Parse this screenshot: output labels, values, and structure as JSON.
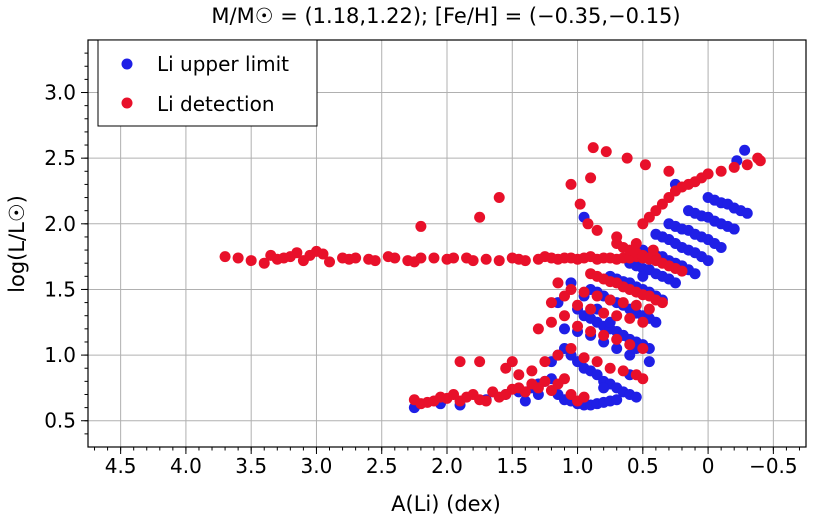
{
  "chart_data": {
    "type": "scatter",
    "title": "M/M☉ = (1.18,1.22); [Fe/H] = (−0.35,−0.15)",
    "xlabel": "A(Li) (dex)",
    "ylabel": "log(L/L☉)",
    "xlim": [
      4.75,
      -0.75
    ],
    "ylim": [
      0.3,
      3.4
    ],
    "x_inverted": true,
    "xticks": [
      4.5,
      4.0,
      3.5,
      3.0,
      2.5,
      2.0,
      1.5,
      1.0,
      0.5,
      0.0,
      -0.5
    ],
    "xtick_labels": [
      "4.5",
      "4.0",
      "3.5",
      "3.0",
      "2.5",
      "2.0",
      "1.5",
      "1.0",
      "0.5",
      "0",
      "−0.5"
    ],
    "yticks": [
      0.5,
      1.0,
      1.5,
      2.0,
      2.5,
      3.0
    ],
    "ytick_labels": [
      "0.5",
      "1.0",
      "1.5",
      "2.0",
      "2.5",
      "3.0"
    ],
    "grid": true,
    "legend_position": "top-left",
    "series": [
      {
        "name": "Li upper limit",
        "color": "#1f1fe6",
        "x": [
          2.25,
          2.05,
          1.9,
          1.7,
          1.55,
          1.45,
          1.35,
          1.3,
          1.25,
          1.2,
          1.15,
          1.1,
          1.05,
          1.0,
          0.95,
          0.9,
          0.85,
          0.8,
          0.75,
          0.7,
          1.2,
          1.15,
          1.1,
          1.05,
          1.0,
          0.95,
          0.9,
          0.85,
          0.8,
          0.75,
          0.7,
          0.65,
          0.6,
          0.55,
          1.1,
          1.0,
          0.9,
          0.8,
          0.7,
          0.6,
          1.0,
          0.95,
          0.9,
          0.85,
          0.8,
          0.75,
          0.7,
          0.65,
          0.6,
          0.55,
          0.5,
          0.45,
          0.9,
          0.85,
          0.8,
          0.75,
          0.7,
          0.65,
          0.6,
          0.55,
          0.5,
          0.45,
          0.4,
          0.75,
          0.7,
          0.65,
          0.6,
          0.55,
          0.5,
          0.45,
          0.4,
          0.35,
          0.6,
          0.55,
          0.5,
          0.45,
          0.4,
          0.35,
          0.3,
          0.25,
          0.5,
          0.45,
          0.4,
          0.35,
          0.3,
          0.25,
          0.2,
          0.15,
          0.1,
          0.4,
          0.35,
          0.3,
          0.25,
          0.2,
          0.15,
          0.1,
          0.05,
          0.0,
          0.3,
          0.25,
          0.2,
          0.15,
          0.1,
          0.05,
          0.0,
          -0.05,
          -0.1,
          0.15,
          0.1,
          0.05,
          0.0,
          -0.05,
          -0.1,
          -0.15,
          -0.2,
          0.0,
          -0.05,
          -0.1,
          -0.15,
          -0.2,
          -0.25,
          -0.3,
          1.05,
          0.95,
          0.85,
          0.75,
          0.65,
          0.55,
          0.45,
          1.15,
          0.8,
          0.6,
          0.5,
          0.35,
          0.25,
          -0.28,
          -0.22,
          0.95,
          1.3,
          1.4
        ],
        "y": [
          0.6,
          0.63,
          0.62,
          0.66,
          0.7,
          0.72,
          0.75,
          0.78,
          0.8,
          0.82,
          0.7,
          0.66,
          0.65,
          0.63,
          0.62,
          0.62,
          0.63,
          0.64,
          0.65,
          0.66,
          0.95,
          1.0,
          1.05,
          1.0,
          0.95,
          0.9,
          0.88,
          0.85,
          0.8,
          0.78,
          0.75,
          0.72,
          0.7,
          0.68,
          1.2,
          1.18,
          1.15,
          1.1,
          1.05,
          1.0,
          1.35,
          1.3,
          1.28,
          1.25,
          1.22,
          1.2,
          1.18,
          1.15,
          1.12,
          1.1,
          1.08,
          1.05,
          1.5,
          1.48,
          1.45,
          1.42,
          1.4,
          1.38,
          1.35,
          1.32,
          1.3,
          1.28,
          1.25,
          1.6,
          1.58,
          1.56,
          1.55,
          1.52,
          1.5,
          1.48,
          1.45,
          1.42,
          1.7,
          1.68,
          1.66,
          1.65,
          1.62,
          1.6,
          1.58,
          1.55,
          1.8,
          1.78,
          1.76,
          1.75,
          1.72,
          1.7,
          1.68,
          1.65,
          1.62,
          1.92,
          1.9,
          1.88,
          1.85,
          1.82,
          1.8,
          1.78,
          1.75,
          1.72,
          2.0,
          1.98,
          1.96,
          1.95,
          1.92,
          1.9,
          1.88,
          1.85,
          1.82,
          2.1,
          2.08,
          2.06,
          2.05,
          2.02,
          2.0,
          1.98,
          1.96,
          2.2,
          2.18,
          2.16,
          2.15,
          2.12,
          2.1,
          2.08,
          1.55,
          1.45,
          1.35,
          1.25,
          1.15,
          1.05,
          0.95,
          1.4,
          0.75,
          0.85,
          1.6,
          1.9,
          2.3,
          2.56,
          2.48,
          2.05,
          0.7,
          0.65
        ]
      },
      {
        "name": "Li detection",
        "color": "#e8102a",
        "x": [
          3.7,
          3.6,
          3.5,
          3.4,
          3.35,
          3.3,
          3.25,
          3.2,
          3.15,
          3.1,
          3.05,
          3.0,
          2.95,
          2.9,
          2.8,
          2.75,
          2.7,
          2.6,
          2.55,
          2.45,
          2.4,
          2.3,
          2.25,
          2.2,
          2.1,
          2.0,
          1.95,
          1.85,
          1.8,
          1.7,
          1.6,
          1.5,
          1.45,
          1.4,
          1.3,
          1.25,
          1.2,
          1.15,
          1.1,
          1.05,
          1.0,
          0.95,
          0.9,
          0.85,
          0.8,
          0.75,
          0.7,
          0.65,
          0.6,
          0.55,
          0.5,
          0.45,
          0.4,
          2.2,
          2.25,
          2.15,
          2.1,
          2.05,
          2.0,
          1.95,
          1.9,
          1.85,
          1.8,
          1.75,
          1.7,
          1.65,
          1.6,
          1.55,
          1.5,
          1.45,
          1.4,
          1.35,
          1.3,
          1.25,
          1.2,
          1.15,
          1.1,
          1.05,
          1.0,
          0.95,
          1.9,
          1.75,
          1.55,
          1.45,
          1.35,
          1.25,
          1.15,
          1.05,
          0.95,
          0.85,
          0.75,
          0.65,
          0.55,
          0.5,
          1.3,
          1.2,
          1.1,
          1.0,
          0.9,
          0.8,
          0.7,
          0.6,
          0.5,
          1.2,
          1.1,
          1.0,
          0.9,
          0.8,
          0.7,
          0.6,
          0.5,
          1.15,
          1.05,
          0.95,
          0.85,
          0.75,
          0.65,
          0.55,
          0.45,
          0.9,
          0.85,
          0.8,
          0.75,
          0.7,
          0.65,
          0.6,
          0.55,
          0.5,
          0.45,
          0.4,
          0.35,
          0.7,
          0.65,
          0.6,
          0.55,
          0.5,
          0.45,
          0.4,
          0.35,
          0.3,
          0.25,
          0.2,
          0.5,
          0.45,
          0.4,
          0.35,
          0.3,
          0.25,
          0.2,
          0.15,
          0.1,
          0.05,
          0.0,
          -0.1,
          -0.2,
          -0.3,
          -0.4,
          -0.38,
          0.88,
          0.78,
          0.62,
          0.48,
          0.3,
          1.05,
          0.98,
          0.92,
          0.85,
          0.7,
          0.55,
          0.42,
          2.2,
          1.75,
          1.6,
          0.9,
          1.5
        ],
        "y": [
          1.75,
          1.74,
          1.72,
          1.7,
          1.76,
          1.73,
          1.74,
          1.75,
          1.78,
          1.72,
          1.76,
          1.79,
          1.77,
          1.71,
          1.74,
          1.73,
          1.74,
          1.73,
          1.72,
          1.75,
          1.74,
          1.72,
          1.71,
          1.74,
          1.74,
          1.73,
          1.74,
          1.74,
          1.72,
          1.73,
          1.72,
          1.74,
          1.73,
          1.72,
          1.73,
          1.75,
          1.74,
          1.73,
          1.74,
          1.74,
          1.73,
          1.74,
          1.75,
          1.73,
          1.74,
          1.74,
          1.73,
          1.74,
          1.74,
          1.75,
          1.74,
          1.73,
          1.74,
          0.63,
          0.66,
          0.64,
          0.65,
          0.68,
          0.67,
          0.7,
          0.65,
          0.68,
          0.7,
          0.66,
          0.65,
          0.72,
          0.68,
          0.7,
          0.74,
          0.75,
          0.72,
          0.78,
          0.75,
          0.8,
          0.73,
          0.78,
          0.82,
          0.7,
          0.65,
          0.68,
          0.95,
          0.95,
          0.9,
          0.85,
          0.88,
          0.95,
          1.0,
          1.05,
          0.98,
          0.95,
          0.9,
          0.88,
          0.85,
          0.82,
          1.2,
          1.25,
          1.3,
          1.22,
          1.18,
          1.15,
          1.12,
          1.08,
          1.05,
          1.4,
          1.45,
          1.38,
          1.35,
          1.32,
          1.3,
          1.28,
          1.25,
          1.55,
          1.5,
          1.48,
          1.45,
          1.42,
          1.4,
          1.38,
          1.35,
          1.62,
          1.6,
          1.58,
          1.56,
          1.55,
          1.52,
          1.5,
          1.48,
          1.46,
          1.45,
          1.42,
          1.4,
          1.85,
          1.82,
          1.8,
          1.78,
          1.76,
          1.74,
          1.72,
          1.7,
          1.68,
          1.66,
          1.64,
          2.0,
          2.05,
          2.1,
          2.15,
          2.2,
          2.25,
          2.28,
          2.3,
          2.32,
          2.35,
          2.38,
          2.4,
          2.43,
          2.45,
          2.48,
          2.5,
          2.58,
          2.55,
          2.5,
          2.45,
          2.4,
          2.3,
          2.15,
          2.0,
          1.95,
          1.9,
          1.85,
          1.8,
          1.98,
          2.05,
          2.2,
          2.35,
          0.95
        ]
      }
    ]
  }
}
